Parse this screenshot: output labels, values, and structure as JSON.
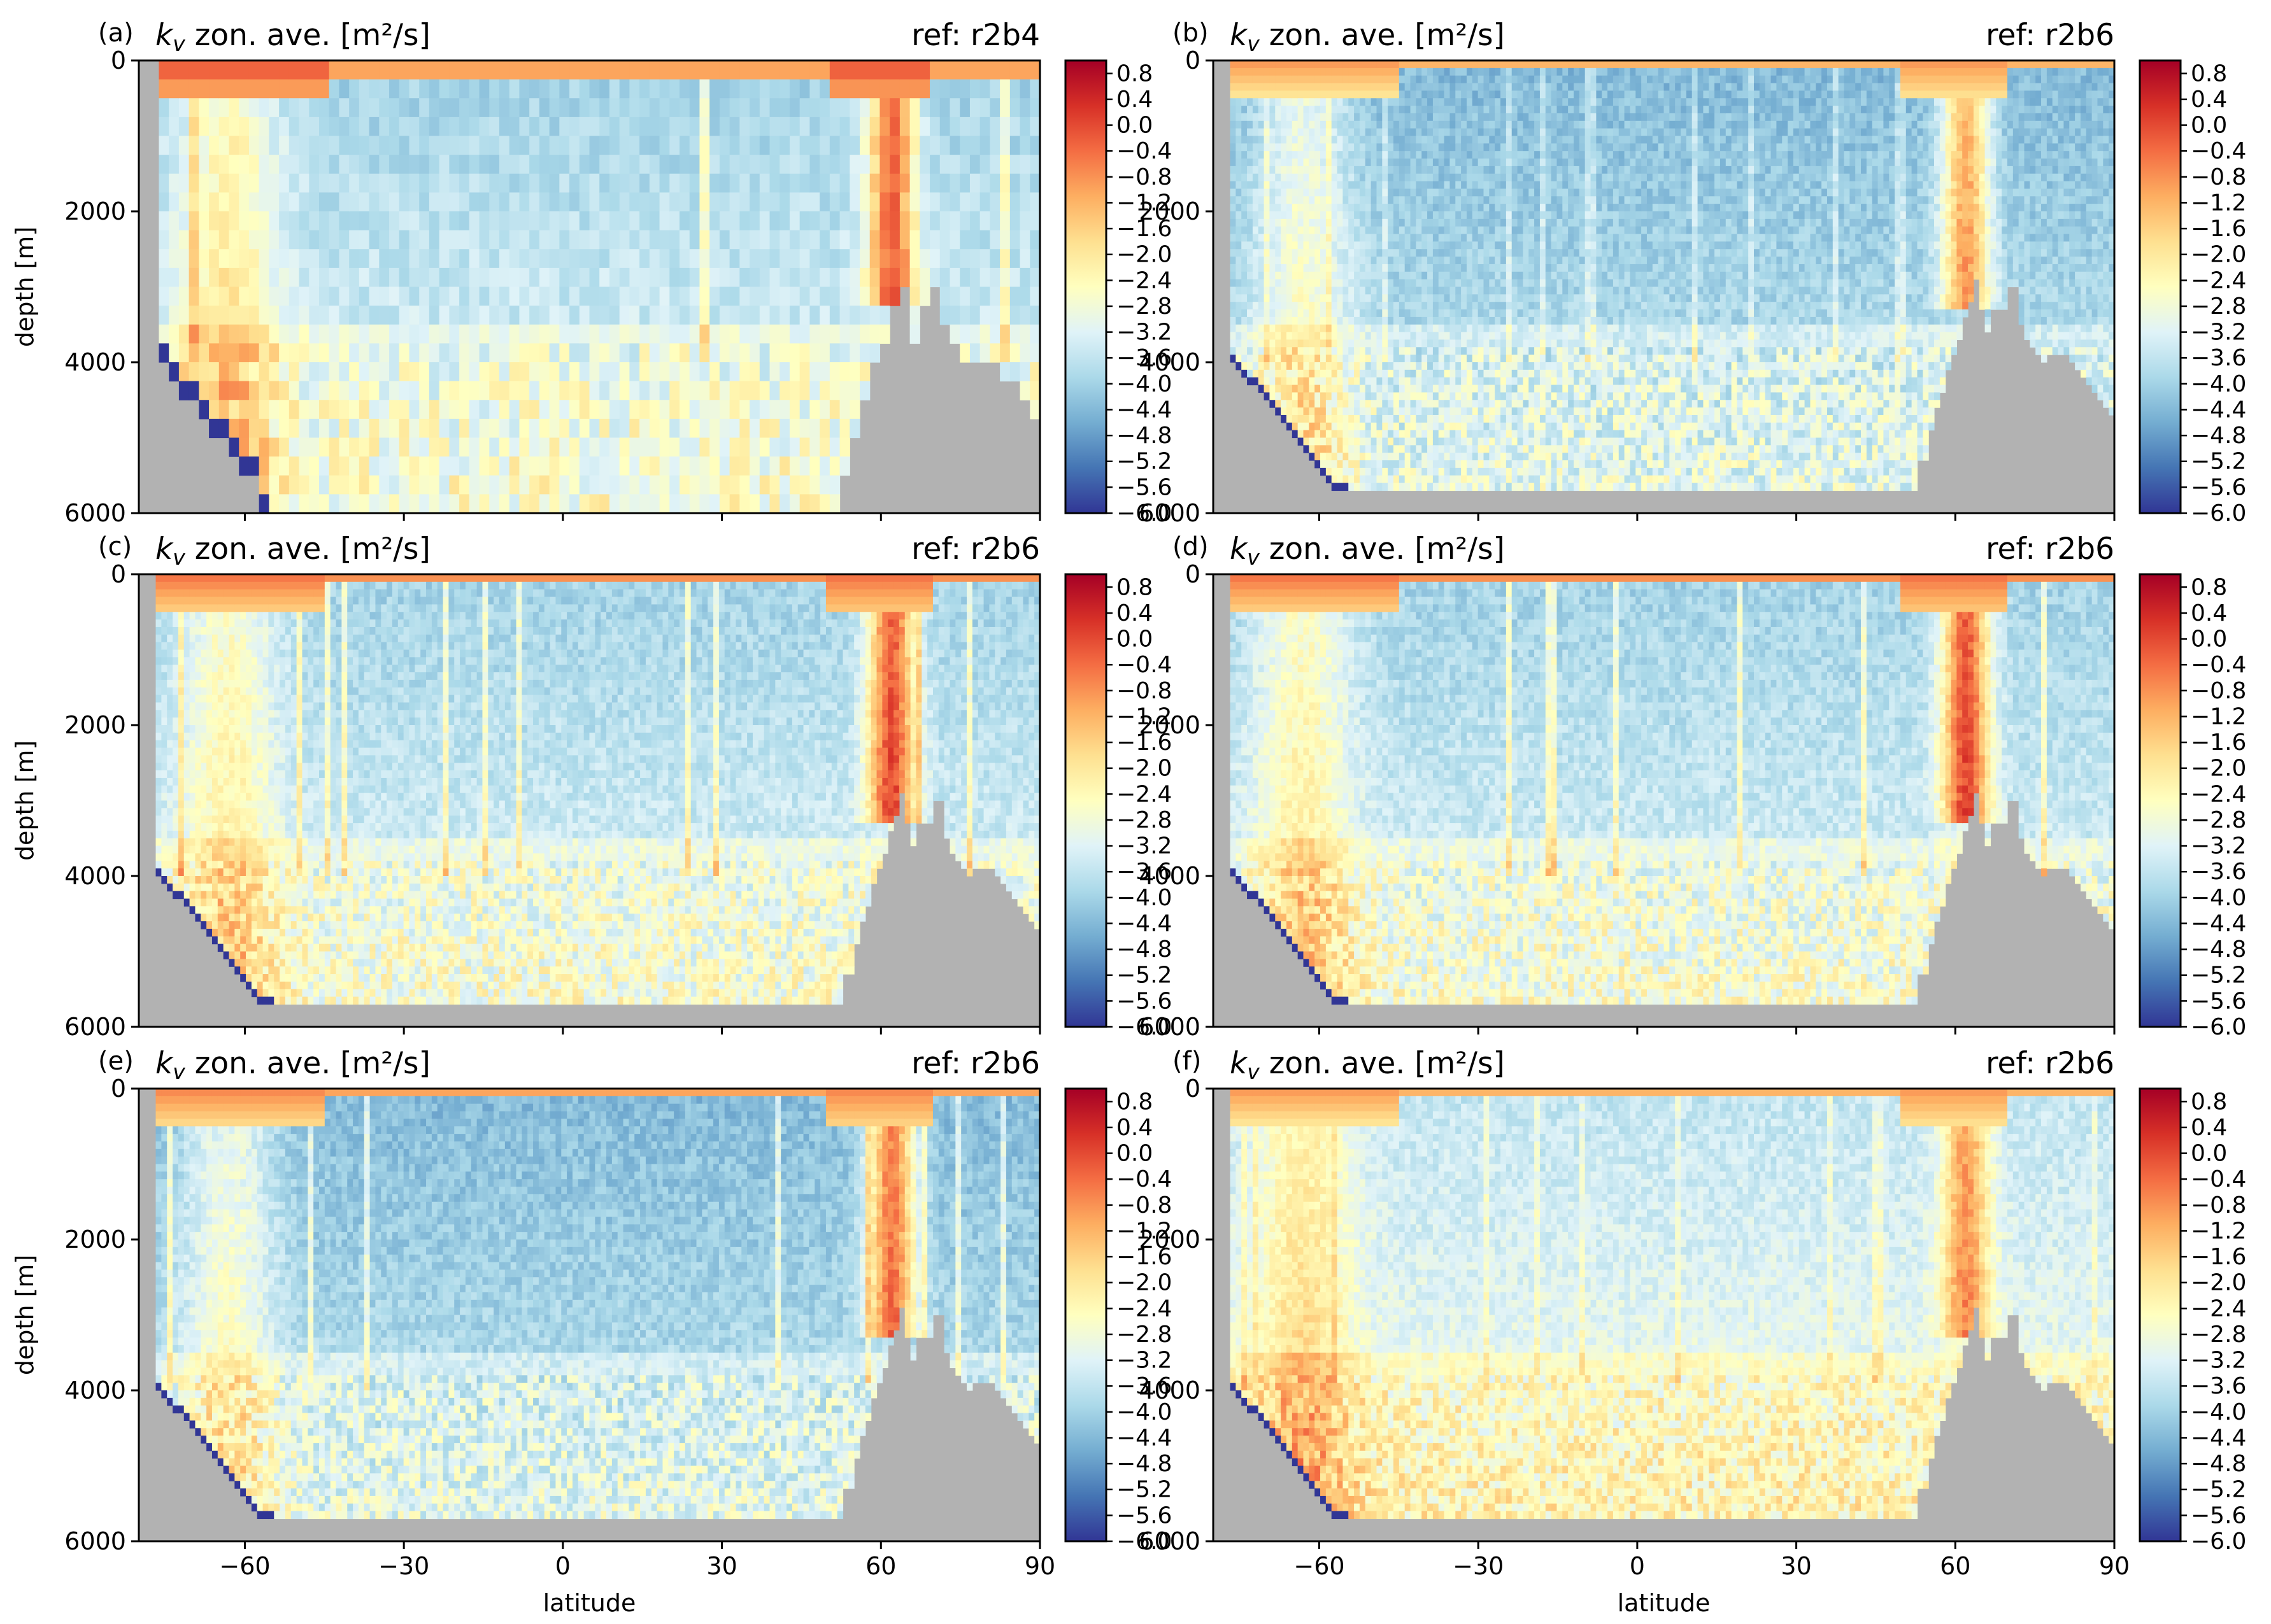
{
  "figure": {
    "xlabel": "latitude",
    "ylabel": "depth [m]"
  },
  "chart_data": {
    "type": "heatmap",
    "x_ticks": [
      -60,
      -30,
      0,
      30,
      60,
      90
    ],
    "x_tick_labels": [
      "−60",
      "−30",
      "0",
      "30",
      "60",
      "90"
    ],
    "xlim": [
      -80,
      90
    ],
    "y_ticks": [
      0,
      2000,
      4000,
      6000
    ],
    "y_tick_labels": [
      "0",
      "2000",
      "4000",
      "6000"
    ],
    "ylim": [
      6000,
      0
    ],
    "colorbar": {
      "colormap": "RdYlBu_r",
      "range": [
        -6.0,
        1.0
      ],
      "ticks": [
        0.8,
        0.4,
        0.0,
        -0.4,
        -0.8,
        -1.2,
        -1.6,
        -2.0,
        -2.4,
        -2.8,
        -3.2,
        -3.6,
        -4.0,
        -4.4,
        -4.8,
        -5.2,
        -5.6,
        -6.0
      ],
      "tick_labels": [
        "0.8",
        "0.4",
        "0.0",
        "−0.4",
        "−0.8",
        "−1.2",
        "−1.6",
        "−2.0",
        "−2.4",
        "−2.8",
        "−3.2",
        "−3.6",
        "−4.0",
        "−4.4",
        "−4.8",
        "−5.2",
        "−5.6",
        "−6.0"
      ]
    },
    "land_color": "#b2b2b2",
    "panels": [
      {
        "letter": "(a)",
        "title": "zon. ave. [m²/s]",
        "variable": "k_v",
        "ref": "ref: r2b4",
        "pattern": "coarse",
        "description_values": {
          "surface_log10_kv": 0.0,
          "interior_log10_kv": -4.0,
          "north_atlantic_max": -0.4
        }
      },
      {
        "letter": "(b)",
        "title": "zon. ave. [m²/s]",
        "variable": "k_v",
        "ref": "ref: r2b6",
        "pattern": "weak",
        "description_values": {
          "surface_log10_kv": -0.8,
          "interior_log10_kv": -4.4,
          "north_atlantic_max": -1.2
        }
      },
      {
        "letter": "(c)",
        "title": "zon. ave. [m²/s]",
        "variable": "k_v",
        "ref": "ref: r2b6",
        "pattern": "strong",
        "description_values": {
          "surface_log10_kv": -0.4,
          "interior_log10_kv": -4.0,
          "north_atlantic_max": -0.2
        }
      },
      {
        "letter": "(d)",
        "title": "zon. ave. [m²/s]",
        "variable": "k_v",
        "ref": "ref: r2b6",
        "pattern": "strong",
        "description_values": {
          "surface_log10_kv": -0.4,
          "interior_log10_kv": -4.0,
          "north_atlantic_max": -0.2
        }
      },
      {
        "letter": "(e)",
        "title": "zon. ave. [m²/s]",
        "variable": "k_v",
        "ref": "ref: r2b6",
        "pattern": "medium",
        "description_values": {
          "surface_log10_kv": -0.6,
          "interior_log10_kv": -4.4,
          "north_atlantic_max": -0.6
        }
      },
      {
        "letter": "(f)",
        "title": "zon. ave. [m²/s]",
        "variable": "k_v",
        "ref": "ref: r2b6",
        "pattern": "weak",
        "description_values": {
          "surface_log10_kv": -0.8,
          "interior_log10_kv": -3.6,
          "north_atlantic_max": -1.0
        }
      }
    ]
  }
}
